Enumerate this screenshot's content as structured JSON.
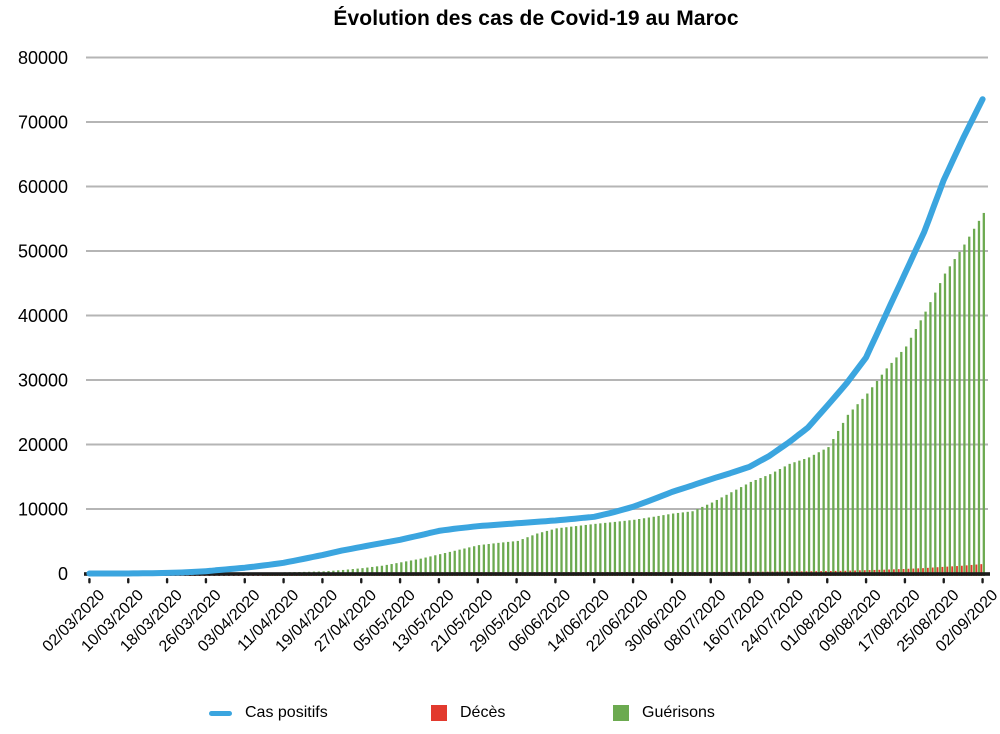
{
  "chart_data": {
    "type": "line+bar",
    "title": "Évolution des cas de Covid-19 au Maroc",
    "xlabel": "",
    "ylabel": "",
    "ylim": [
      0,
      80000
    ],
    "y_ticks": [
      0,
      10000,
      20000,
      30000,
      40000,
      50000,
      60000,
      70000,
      80000
    ],
    "grid": "horizontal",
    "grid_color": "#b5b5b5",
    "axis_color": "#1c1c1c",
    "legend_position": "bottom",
    "x_frequency": "daily",
    "x_start_date": "02/03/2020",
    "x_end_date": "02/09/2020",
    "x_tick_labels": [
      "02/03/2020",
      "10/03/2020",
      "18/03/2020",
      "26/03/2020",
      "03/04/2020",
      "11/04/2020",
      "19/04/2020",
      "27/04/2020",
      "05/05/2020",
      "13/05/2020",
      "21/05/2020",
      "29/05/2020",
      "06/06/2020",
      "14/06/2020",
      "22/06/2020",
      "30/06/2020",
      "08/07/2020",
      "16/07/2020",
      "24/07/2020",
      "01/08/2020",
      "09/08/2020",
      "17/08/2020",
      "25/08/2020",
      "02/09/2020"
    ],
    "series": [
      {
        "name": "Cas positifs",
        "type": "line",
        "color": "#3ba5df",
        "values": [
          2,
          2,
          3,
          3,
          3,
          4,
          4,
          5,
          6,
          12,
          18,
          24,
          30,
          45,
          60,
          75,
          90,
          113,
          135,
          158,
          180,
          225,
          270,
          315,
          360,
          425,
          490,
          555,
          620,
          690,
          760,
          830,
          900,
          988,
          1075,
          1163,
          1250,
          1353,
          1455,
          1558,
          1660,
          1808,
          1955,
          2103,
          2250,
          2403,
          2555,
          2708,
          2860,
          3033,
          3205,
          3378,
          3550,
          3693,
          3835,
          3978,
          4120,
          4260,
          4400,
          4540,
          4680,
          4815,
          4950,
          5085,
          5220,
          5393,
          5565,
          5738,
          5910,
          6085,
          6260,
          6435,
          6610,
          6710,
          6810,
          6910,
          7010,
          7090,
          7170,
          7250,
          7330,
          7388,
          7445,
          7503,
          7560,
          7615,
          7670,
          7725,
          7780,
          7835,
          7890,
          7945,
          8000,
          8055,
          8110,
          8165,
          8220,
          8290,
          8360,
          8430,
          8500,
          8573,
          8645,
          8718,
          8790,
          8968,
          9145,
          9323,
          9500,
          9710,
          9920,
          10130,
          10340,
          10618,
          10895,
          11173,
          11450,
          11748,
          12045,
          12343,
          12640,
          12880,
          13120,
          13360,
          13600,
          13853,
          14105,
          14358,
          14610,
          14845,
          15080,
          15315,
          15550,
          15800,
          16050,
          16300,
          16550,
          16963,
          17375,
          17788,
          18200,
          18720,
          19240,
          19760,
          20280,
          20860,
          21440,
          22020,
          22600,
          23450,
          24300,
          25150,
          26000,
          26875,
          27750,
          28625,
          29500,
          30500,
          31500,
          32500,
          33500,
          35125,
          36750,
          38375,
          40000,
          41625,
          43250,
          44875,
          46500,
          48125,
          49750,
          51375,
          53000,
          55000,
          57000,
          59000,
          61000,
          62625,
          64250,
          65875,
          67500,
          69010,
          70520,
          72030,
          73540
        ]
      },
      {
        "name": "Décès",
        "type": "bar",
        "color": "#e23a2e",
        "values": [
          0,
          0,
          0,
          0,
          0,
          0,
          0,
          0,
          0,
          0,
          0,
          0,
          0,
          1,
          1,
          2,
          2,
          3,
          4,
          4,
          5,
          10,
          15,
          20,
          25,
          29,
          33,
          36,
          40,
          45,
          50,
          55,
          60,
          68,
          75,
          83,
          90,
          96,
          103,
          109,
          115,
          119,
          123,
          126,
          130,
          133,
          136,
          139,
          142,
          144,
          146,
          148,
          150,
          153,
          155,
          158,
          160,
          163,
          165,
          168,
          170,
          173,
          175,
          178,
          180,
          181,
          183,
          184,
          185,
          186,
          188,
          189,
          190,
          191,
          193,
          194,
          195,
          196,
          196,
          197,
          197,
          198,
          199,
          199,
          200,
          201,
          202,
          202,
          203,
          204,
          205,
          205,
          206,
          207,
          208,
          208,
          209,
          210,
          210,
          211,
          211,
          212,
          212,
          213,
          213,
          214,
          214,
          215,
          215,
          216,
          217,
          217,
          218,
          219,
          220,
          221,
          222,
          224,
          225,
          227,
          228,
          230,
          232,
          233,
          235,
          238,
          240,
          243,
          245,
          248,
          250,
          253,
          255,
          258,
          260,
          263,
          265,
          270,
          275,
          280,
          285,
          291,
          298,
          304,
          310,
          318,
          325,
          333,
          340,
          349,
          358,
          366,
          375,
          386,
          398,
          409,
          420,
          443,
          465,
          488,
          510,
          530,
          550,
          570,
          590,
          618,
          645,
          673,
          700,
          733,
          765,
          798,
          830,
          878,
          925,
          973,
          1020,
          1065,
          1110,
          1155,
          1200,
          1263,
          1325,
          1388,
          1450
        ]
      },
      {
        "name": "Guérisons",
        "type": "bar",
        "color": "#6caa50",
        "values": [
          0,
          0,
          0,
          0,
          0,
          0,
          0,
          0,
          0,
          0,
          0,
          0,
          0,
          0,
          0,
          0,
          0,
          0,
          0,
          0,
          0,
          0,
          0,
          0,
          0,
          0,
          0,
          0,
          0,
          0,
          0,
          0,
          0,
          0,
          0,
          0,
          30,
          68,
          105,
          143,
          180,
          198,
          215,
          233,
          250,
          270,
          290,
          310,
          330,
          385,
          440,
          495,
          550,
          620,
          690,
          760,
          830,
          923,
          1015,
          1108,
          1200,
          1335,
          1470,
          1605,
          1740,
          1880,
          2020,
          2160,
          2300,
          2475,
          2650,
          2825,
          3000,
          3175,
          3350,
          3525,
          3700,
          3875,
          4050,
          4225,
          4400,
          4488,
          4575,
          4663,
          4750,
          4825,
          4900,
          4975,
          5050,
          5338,
          5625,
          5913,
          6200,
          6400,
          6600,
          6800,
          7000,
          7088,
          7175,
          7263,
          7350,
          7438,
          7525,
          7613,
          7700,
          7775,
          7850,
          7925,
          8000,
          8083,
          8165,
          8248,
          8330,
          8448,
          8565,
          8683,
          8800,
          8925,
          9050,
          9175,
          9300,
          9388,
          9475,
          9563,
          9650,
          9988,
          10325,
          10663,
          11000,
          11400,
          11800,
          12200,
          12600,
          13000,
          13400,
          13800,
          14200,
          14500,
          14800,
          15100,
          15400,
          15800,
          16200,
          16600,
          17000,
          17250,
          17500,
          17750,
          18000,
          18400,
          18800,
          19200,
          19600,
          20850,
          22100,
          23350,
          24600,
          25425,
          26250,
          27075,
          27900,
          28875,
          29850,
          30825,
          31800,
          32650,
          33500,
          34350,
          35200,
          36550,
          37900,
          39250,
          40600,
          42075,
          43550,
          45025,
          46500,
          47625,
          48750,
          49875,
          51000,
          52225,
          53450,
          54675,
          55900
        ]
      }
    ]
  }
}
